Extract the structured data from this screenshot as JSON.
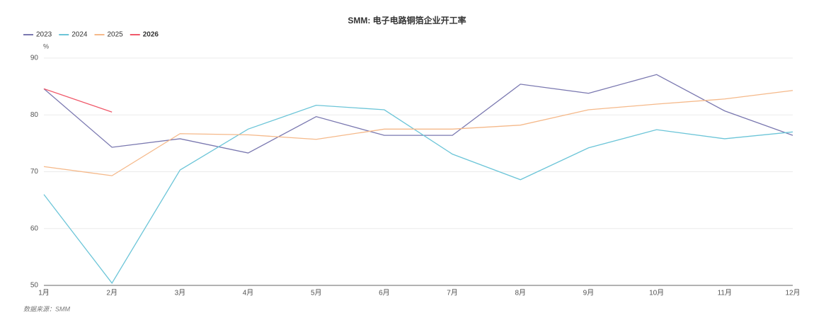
{
  "chart_data": {
    "type": "line",
    "title": "SMM: 电子电路铜箔企业开工率",
    "y_unit": "%",
    "source": "数据来源：SMM",
    "categories": [
      "1月",
      "2月",
      "3月",
      "4月",
      "5月",
      "6月",
      "7月",
      "8月",
      "9月",
      "10月",
      "11月",
      "12月"
    ],
    "series": [
      {
        "name": "2023",
        "color": "#7a78b0",
        "values": [
          84.6,
          74.3,
          75.8,
          73.3,
          79.7,
          76.4,
          76.4,
          85.4,
          83.8,
          87.1,
          80.7,
          76.4
        ]
      },
      {
        "name": "2024",
        "color": "#6cc5d8",
        "values": [
          66.0,
          50.4,
          70.3,
          77.5,
          81.7,
          80.9,
          73.1,
          68.6,
          74.2,
          77.4,
          75.8,
          77.0
        ]
      },
      {
        "name": "2025",
        "color": "#f5b98a",
        "values": [
          70.9,
          69.3,
          76.7,
          76.5,
          75.7,
          77.5,
          77.5,
          78.2,
          80.9,
          81.9,
          82.8,
          84.3
        ]
      },
      {
        "name": "2026",
        "color": "#f0596a",
        "values": [
          84.6,
          80.5,
          null,
          null,
          null,
          null,
          null,
          null,
          null,
          null,
          null,
          null
        ]
      }
    ],
    "ylim": [
      50,
      90
    ],
    "yticks": [
      50,
      60,
      70,
      80,
      90
    ],
    "grid": true,
    "legend": "top-left"
  }
}
